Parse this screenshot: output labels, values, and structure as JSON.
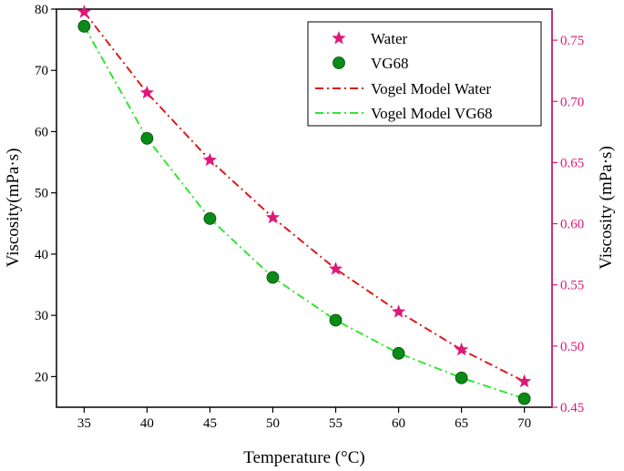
{
  "chart_data": {
    "type": "line",
    "x": [
      35,
      40,
      45,
      50,
      55,
      60,
      65,
      70
    ],
    "xlabel": "Temperature (°C)",
    "xlim": [
      32.8,
      72.2
    ],
    "xticks": [
      35,
      40,
      45,
      50,
      55,
      60,
      65,
      70
    ],
    "ylabel_left": "Viscosity(mPa·s)",
    "ylim_left": [
      15,
      80
    ],
    "yticks_left": [
      20,
      30,
      40,
      50,
      60,
      70,
      80
    ],
    "ylabel_right": "Viscosity (mPa·s)",
    "ylim_right": [
      0.45,
      0.7754
    ],
    "yticks_right": [
      "0.45",
      "0.50",
      "0.55",
      "0.60",
      "0.65",
      "0.70",
      "0.75"
    ],
    "grid": false,
    "legend_position": "top-right",
    "series": [
      {
        "name": "Water",
        "axis": "right",
        "marker": "star",
        "color": "#e0177a",
        "values": [
          0.773,
          0.707,
          0.652,
          0.605,
          0.563,
          0.528,
          0.497,
          0.471
        ]
      },
      {
        "name": "VG68",
        "axis": "left",
        "marker": "circle",
        "color": "#0a8a17",
        "values": [
          77.2,
          58.9,
          45.8,
          36.2,
          29.2,
          23.8,
          19.8,
          16.4
        ]
      },
      {
        "name": "Vogel Model Water",
        "axis": "right",
        "line": "dash-dot",
        "color": "#dd1a1a",
        "values": [
          0.773,
          0.707,
          0.652,
          0.605,
          0.563,
          0.528,
          0.497,
          0.471
        ]
      },
      {
        "name": "Vogel Model VG68",
        "axis": "left",
        "line": "dash-dot",
        "color": "#33e633",
        "values": [
          77.2,
          58.9,
          45.8,
          36.2,
          29.2,
          23.8,
          19.8,
          16.4
        ]
      }
    ],
    "colors": {
      "left_axis": "#000000",
      "right_axis": "#e0177a"
    }
  }
}
